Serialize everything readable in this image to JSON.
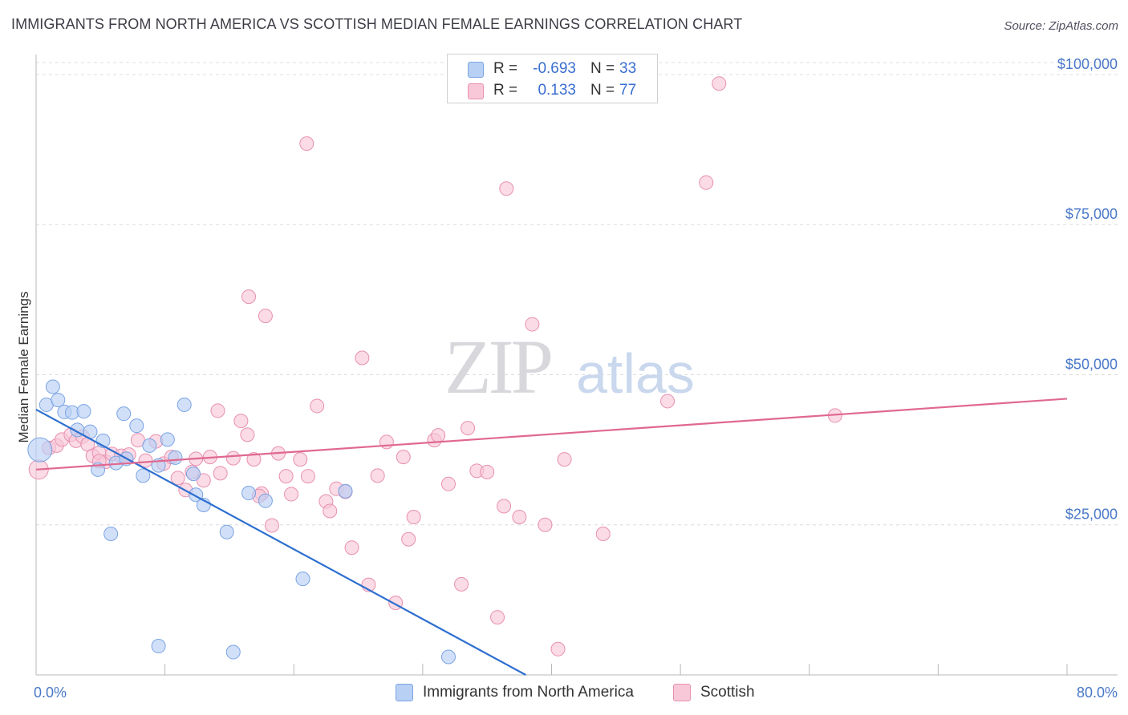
{
  "title": "IMMIGRANTS FROM NORTH AMERICA VS SCOTTISH MEDIAN FEMALE EARNINGS CORRELATION CHART",
  "source": "Source: ZipAtlas.com",
  "watermark": {
    "zip": "ZIP",
    "atlas": "atlas"
  },
  "legend": {
    "r_label": "R =",
    "n_label": "N =",
    "series": [
      {
        "r": "-0.693",
        "n": "33"
      },
      {
        "r": "0.133",
        "n": "77"
      }
    ]
  },
  "colors": {
    "blue_fill": "#b8d0f4",
    "blue_stroke": "#7aa4e4",
    "blue_line": "#2d6fd0",
    "pink_fill": "#f8c8d8",
    "pink_stroke": "#e890b0",
    "pink_line": "#e06890",
    "tick_text": "#4a78c8",
    "grid": "#dcdcdc"
  },
  "chart_data": {
    "type": "scatter",
    "title": "IMMIGRANTS FROM NORTH AMERICA VS SCOTTISH MEDIAN FEMALE EARNINGS CORRELATION CHART",
    "xlabel": "",
    "ylabel": "Median Female Earnings",
    "xlim": [
      0,
      80
    ],
    "ylim": [
      0,
      102000
    ],
    "x_tick_labels": [
      "0.0%",
      "80.0%"
    ],
    "y_ticks": [
      25000,
      50000,
      75000,
      100000
    ],
    "y_tick_labels": [
      "$25,000",
      "$50,000",
      "$75,000",
      "$100,000"
    ],
    "grid": true,
    "legend_position": "top-center",
    "series": [
      {
        "name": "Immigrants from North America",
        "color": "#7aa4e4",
        "r": -0.693,
        "n": 33,
        "trend": {
          "x": [
            0.0,
            38.0
          ],
          "y": [
            44200,
            0
          ]
        },
        "points": [
          [
            0.3,
            37500
          ],
          [
            0.8,
            45000
          ],
          [
            1.3,
            48000
          ],
          [
            1.7,
            45800
          ],
          [
            2.2,
            43800
          ],
          [
            2.8,
            43700
          ],
          [
            3.7,
            43900
          ],
          [
            3.2,
            40800
          ],
          [
            4.2,
            40500
          ],
          [
            4.8,
            34200
          ],
          [
            5.2,
            39000
          ],
          [
            6.2,
            35300
          ],
          [
            6.8,
            43500
          ],
          [
            7.0,
            36000
          ],
          [
            7.8,
            41500
          ],
          [
            8.3,
            33200
          ],
          [
            8.8,
            38200
          ],
          [
            9.5,
            34900
          ],
          [
            10.2,
            39200
          ],
          [
            10.8,
            36200
          ],
          [
            11.5,
            45000
          ],
          [
            12.2,
            33500
          ],
          [
            12.4,
            30000
          ],
          [
            13.0,
            28300
          ],
          [
            14.8,
            23800
          ],
          [
            16.5,
            30300
          ],
          [
            17.8,
            29000
          ],
          [
            20.7,
            16000
          ],
          [
            24.0,
            30600
          ],
          [
            5.8,
            23500
          ],
          [
            9.5,
            4800
          ],
          [
            15.3,
            3800
          ],
          [
            32.0,
            3000
          ]
        ]
      },
      {
        "name": "Scottish",
        "color": "#e890b0",
        "r": 0.133,
        "n": 77,
        "trend": {
          "x": [
            0.0,
            80.0
          ],
          "y": [
            34200,
            46000
          ]
        },
        "points": [
          [
            0.2,
            34200
          ],
          [
            1.0,
            37800
          ],
          [
            1.6,
            38200
          ],
          [
            2.0,
            39200
          ],
          [
            2.7,
            40000
          ],
          [
            3.1,
            39000
          ],
          [
            3.6,
            39700
          ],
          [
            4.0,
            38400
          ],
          [
            4.4,
            36500
          ],
          [
            4.9,
            37000
          ],
          [
            5.4,
            35500
          ],
          [
            5.9,
            36800
          ],
          [
            6.6,
            36500
          ],
          [
            7.2,
            36700
          ],
          [
            7.9,
            39100
          ],
          [
            8.5,
            35700
          ],
          [
            9.3,
            38900
          ],
          [
            9.9,
            35200
          ],
          [
            10.5,
            36300
          ],
          [
            11.0,
            32800
          ],
          [
            11.6,
            30800
          ],
          [
            12.1,
            33800
          ],
          [
            12.4,
            36000
          ],
          [
            13.0,
            32400
          ],
          [
            13.5,
            36300
          ],
          [
            14.1,
            44000
          ],
          [
            14.3,
            33600
          ],
          [
            15.3,
            36100
          ],
          [
            15.9,
            42300
          ],
          [
            16.4,
            40000
          ],
          [
            16.9,
            35900
          ],
          [
            17.5,
            30200
          ],
          [
            18.3,
            24900
          ],
          [
            18.8,
            36900
          ],
          [
            19.4,
            33100
          ],
          [
            19.8,
            30100
          ],
          [
            20.5,
            35900
          ],
          [
            21.1,
            33100
          ],
          [
            21.8,
            44800
          ],
          [
            22.5,
            28900
          ],
          [
            22.8,
            27300
          ],
          [
            23.3,
            31000
          ],
          [
            24.0,
            30500
          ],
          [
            24.5,
            21200
          ],
          [
            25.3,
            52800
          ],
          [
            25.8,
            15000
          ],
          [
            26.5,
            33200
          ],
          [
            27.2,
            38800
          ],
          [
            27.9,
            12000
          ],
          [
            28.5,
            36300
          ],
          [
            28.9,
            22600
          ],
          [
            29.3,
            26300
          ],
          [
            30.9,
            39100
          ],
          [
            31.2,
            39900
          ],
          [
            32.0,
            31800
          ],
          [
            33.0,
            15100
          ],
          [
            33.5,
            41100
          ],
          [
            34.2,
            34000
          ],
          [
            35.0,
            33800
          ],
          [
            35.8,
            9600
          ],
          [
            36.3,
            28100
          ],
          [
            37.5,
            26300
          ],
          [
            38.5,
            58400
          ],
          [
            39.5,
            25000
          ],
          [
            40.5,
            4300
          ],
          [
            41.0,
            35900
          ],
          [
            44.0,
            23500
          ],
          [
            49.0,
            45600
          ],
          [
            52.0,
            82000
          ],
          [
            53.0,
            98500
          ],
          [
            62.0,
            43200
          ],
          [
            16.5,
            63000
          ],
          [
            17.8,
            59800
          ],
          [
            21.0,
            88500
          ],
          [
            36.5,
            81000
          ],
          [
            17.3,
            29800
          ],
          [
            4.9,
            35600
          ]
        ]
      }
    ]
  },
  "bottom_legend": [
    "Immigrants from North America",
    "Scottish"
  ]
}
